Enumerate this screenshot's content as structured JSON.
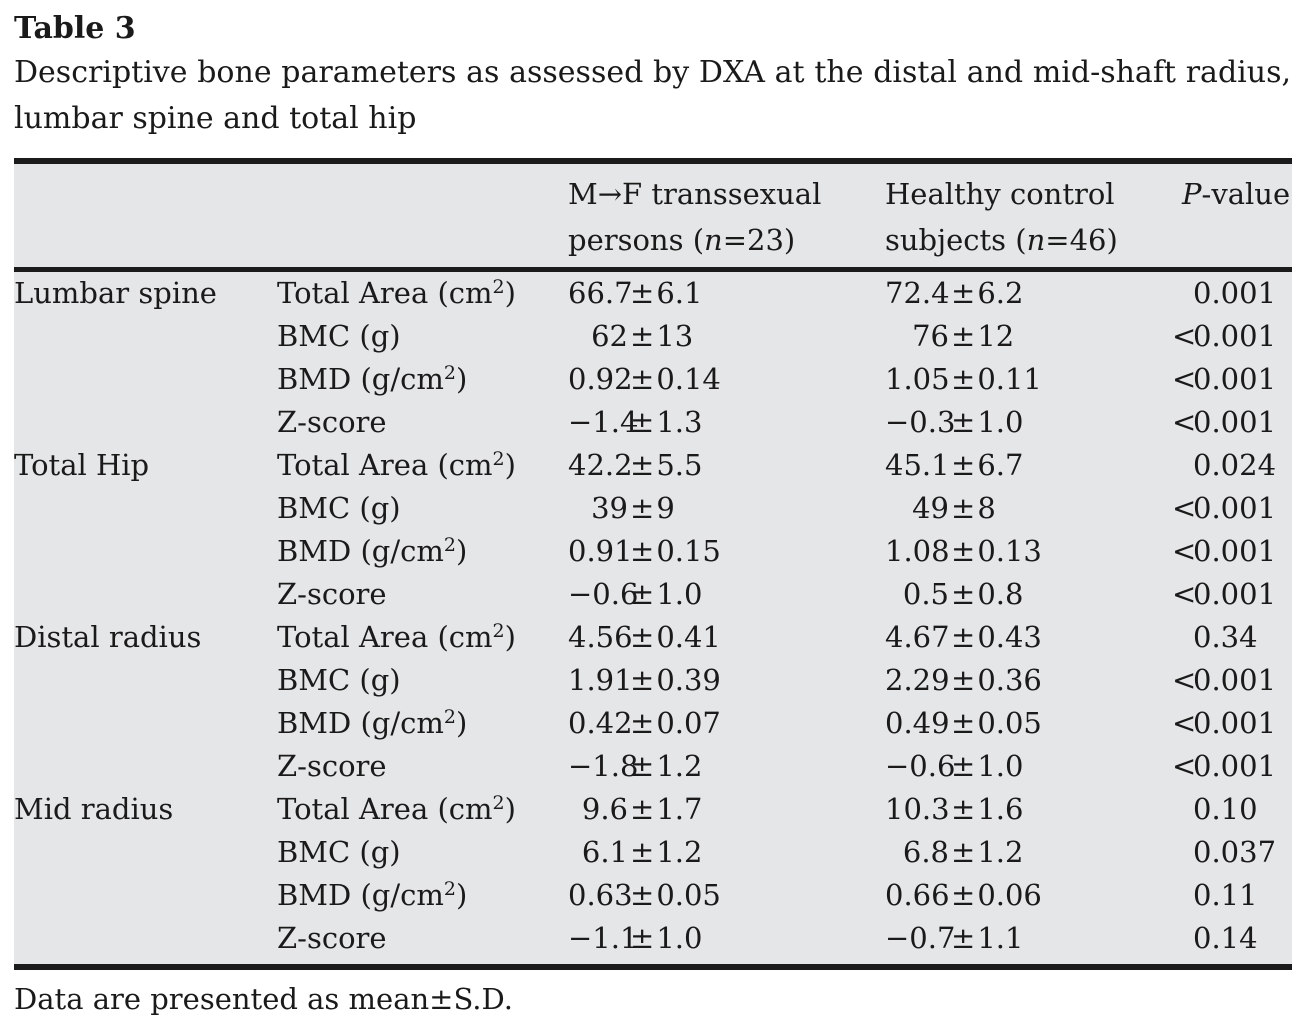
{
  "title": "Table 3",
  "caption_line1": "Descriptive bone parameters as assessed by DXA at the distal and mid-shaft radius,",
  "caption_line2": "lumbar spine and total hip",
  "plus_minus": "±",
  "columns": {
    "group1": {
      "line1": "M→F transsexual",
      "line2_pre": "persons (",
      "n": "n",
      "line2_post": "=23)"
    },
    "group2": {
      "line1": "Healthy control",
      "line2_pre": "subjects (",
      "n": "n",
      "line2_post": "=46)"
    },
    "p": {
      "italic": "P",
      "rest": "-value"
    }
  },
  "rows": [
    {
      "section": "Lumbar spine",
      "param": {
        "pre": "Total Area (cm",
        "sup": "2",
        "post": ")"
      },
      "mf": {
        "mean": "66.7",
        "sd": "6.1"
      },
      "hc": {
        "mean": "72.4",
        "sd": "6.2"
      },
      "p": {
        "prefix": "",
        "value": "0.001"
      }
    },
    {
      "section": "",
      "param": {
        "pre": "BMC (g)",
        "sup": "",
        "post": ""
      },
      "mf": {
        "mean": "62",
        "sd": "13"
      },
      "hc": {
        "mean": "76",
        "sd": "12"
      },
      "p": {
        "prefix": "<",
        "value": "0.001"
      }
    },
    {
      "section": "",
      "param": {
        "pre": "BMD (g/cm",
        "sup": "2",
        "post": ")"
      },
      "mf": {
        "mean": "0.92",
        "sd": "0.14"
      },
      "hc": {
        "mean": "1.05",
        "sd": "0.11"
      },
      "p": {
        "prefix": "<",
        "value": "0.001"
      }
    },
    {
      "section": "",
      "param": {
        "pre": "Z-score",
        "sup": "",
        "post": ""
      },
      "mf": {
        "mean": "−1.4",
        "sd": "1.3"
      },
      "hc": {
        "mean": "−0.3",
        "sd": "1.0"
      },
      "p": {
        "prefix": "<",
        "value": "0.001"
      }
    },
    {
      "section": "Total Hip",
      "param": {
        "pre": "Total Area (cm",
        "sup": "2",
        "post": ")"
      },
      "mf": {
        "mean": "42.2",
        "sd": "5.5"
      },
      "hc": {
        "mean": "45.1",
        "sd": "6.7"
      },
      "p": {
        "prefix": "",
        "value": "0.024"
      }
    },
    {
      "section": "",
      "param": {
        "pre": "BMC (g)",
        "sup": "",
        "post": ""
      },
      "mf": {
        "mean": "39",
        "sd": "9"
      },
      "hc": {
        "mean": "49",
        "sd": "8"
      },
      "p": {
        "prefix": "<",
        "value": "0.001"
      }
    },
    {
      "section": "",
      "param": {
        "pre": "BMD (g/cm",
        "sup": "2",
        "post": ")"
      },
      "mf": {
        "mean": "0.91",
        "sd": "0.15"
      },
      "hc": {
        "mean": "1.08",
        "sd": "0.13"
      },
      "p": {
        "prefix": "<",
        "value": "0.001"
      }
    },
    {
      "section": "",
      "param": {
        "pre": "Z-score",
        "sup": "",
        "post": ""
      },
      "mf": {
        "mean": "−0.6",
        "sd": "1.0"
      },
      "hc": {
        "mean": "0.5",
        "sd": "0.8"
      },
      "p": {
        "prefix": "<",
        "value": "0.001"
      }
    },
    {
      "section": "Distal radius",
      "param": {
        "pre": "Total Area (cm",
        "sup": "2",
        "post": ")"
      },
      "mf": {
        "mean": "4.56",
        "sd": "0.41"
      },
      "hc": {
        "mean": "4.67",
        "sd": "0.43"
      },
      "p": {
        "prefix": "",
        "value": "0.34"
      }
    },
    {
      "section": "",
      "param": {
        "pre": "BMC (g)",
        "sup": "",
        "post": ""
      },
      "mf": {
        "mean": "1.91",
        "sd": "0.39"
      },
      "hc": {
        "mean": "2.29",
        "sd": "0.36"
      },
      "p": {
        "prefix": "<",
        "value": "0.001"
      }
    },
    {
      "section": "",
      "param": {
        "pre": "BMD (g/cm",
        "sup": "2",
        "post": ")"
      },
      "mf": {
        "mean": "0.42",
        "sd": "0.07"
      },
      "hc": {
        "mean": "0.49",
        "sd": "0.05"
      },
      "p": {
        "prefix": "<",
        "value": "0.001"
      }
    },
    {
      "section": "",
      "param": {
        "pre": "Z-score",
        "sup": "",
        "post": ""
      },
      "mf": {
        "mean": "−1.8",
        "sd": "1.2"
      },
      "hc": {
        "mean": "−0.6",
        "sd": "1.0"
      },
      "p": {
        "prefix": "<",
        "value": "0.001"
      }
    },
    {
      "section": "Mid radius",
      "param": {
        "pre": "Total Area (cm",
        "sup": "2",
        "post": ")"
      },
      "mf": {
        "mean": "9.6",
        "sd": "1.7"
      },
      "hc": {
        "mean": "10.3",
        "sd": "1.6"
      },
      "p": {
        "prefix": "",
        "value": "0.10"
      }
    },
    {
      "section": "",
      "param": {
        "pre": "BMC (g)",
        "sup": "",
        "post": ""
      },
      "mf": {
        "mean": "6.1",
        "sd": "1.2"
      },
      "hc": {
        "mean": "6.8",
        "sd": "1.2"
      },
      "p": {
        "prefix": "",
        "value": "0.037"
      }
    },
    {
      "section": "",
      "param": {
        "pre": "BMD (g/cm",
        "sup": "2",
        "post": ")"
      },
      "mf": {
        "mean": "0.63",
        "sd": "0.05"
      },
      "hc": {
        "mean": "0.66",
        "sd": "0.06"
      },
      "p": {
        "prefix": "",
        "value": "0.11"
      }
    },
    {
      "section": "",
      "param": {
        "pre": "Z-score",
        "sup": "",
        "post": ""
      },
      "mf": {
        "mean": "−1.1",
        "sd": "1.0"
      },
      "hc": {
        "mean": "−0.7",
        "sd": "1.1"
      },
      "p": {
        "prefix": "",
        "value": "0.14"
      }
    }
  ],
  "footnote": "Data are presented as mean±S.D.",
  "colors": {
    "panel_bg": "#e5e6e7",
    "text": "#1a1a1a",
    "rule": "#1b1b1b"
  }
}
